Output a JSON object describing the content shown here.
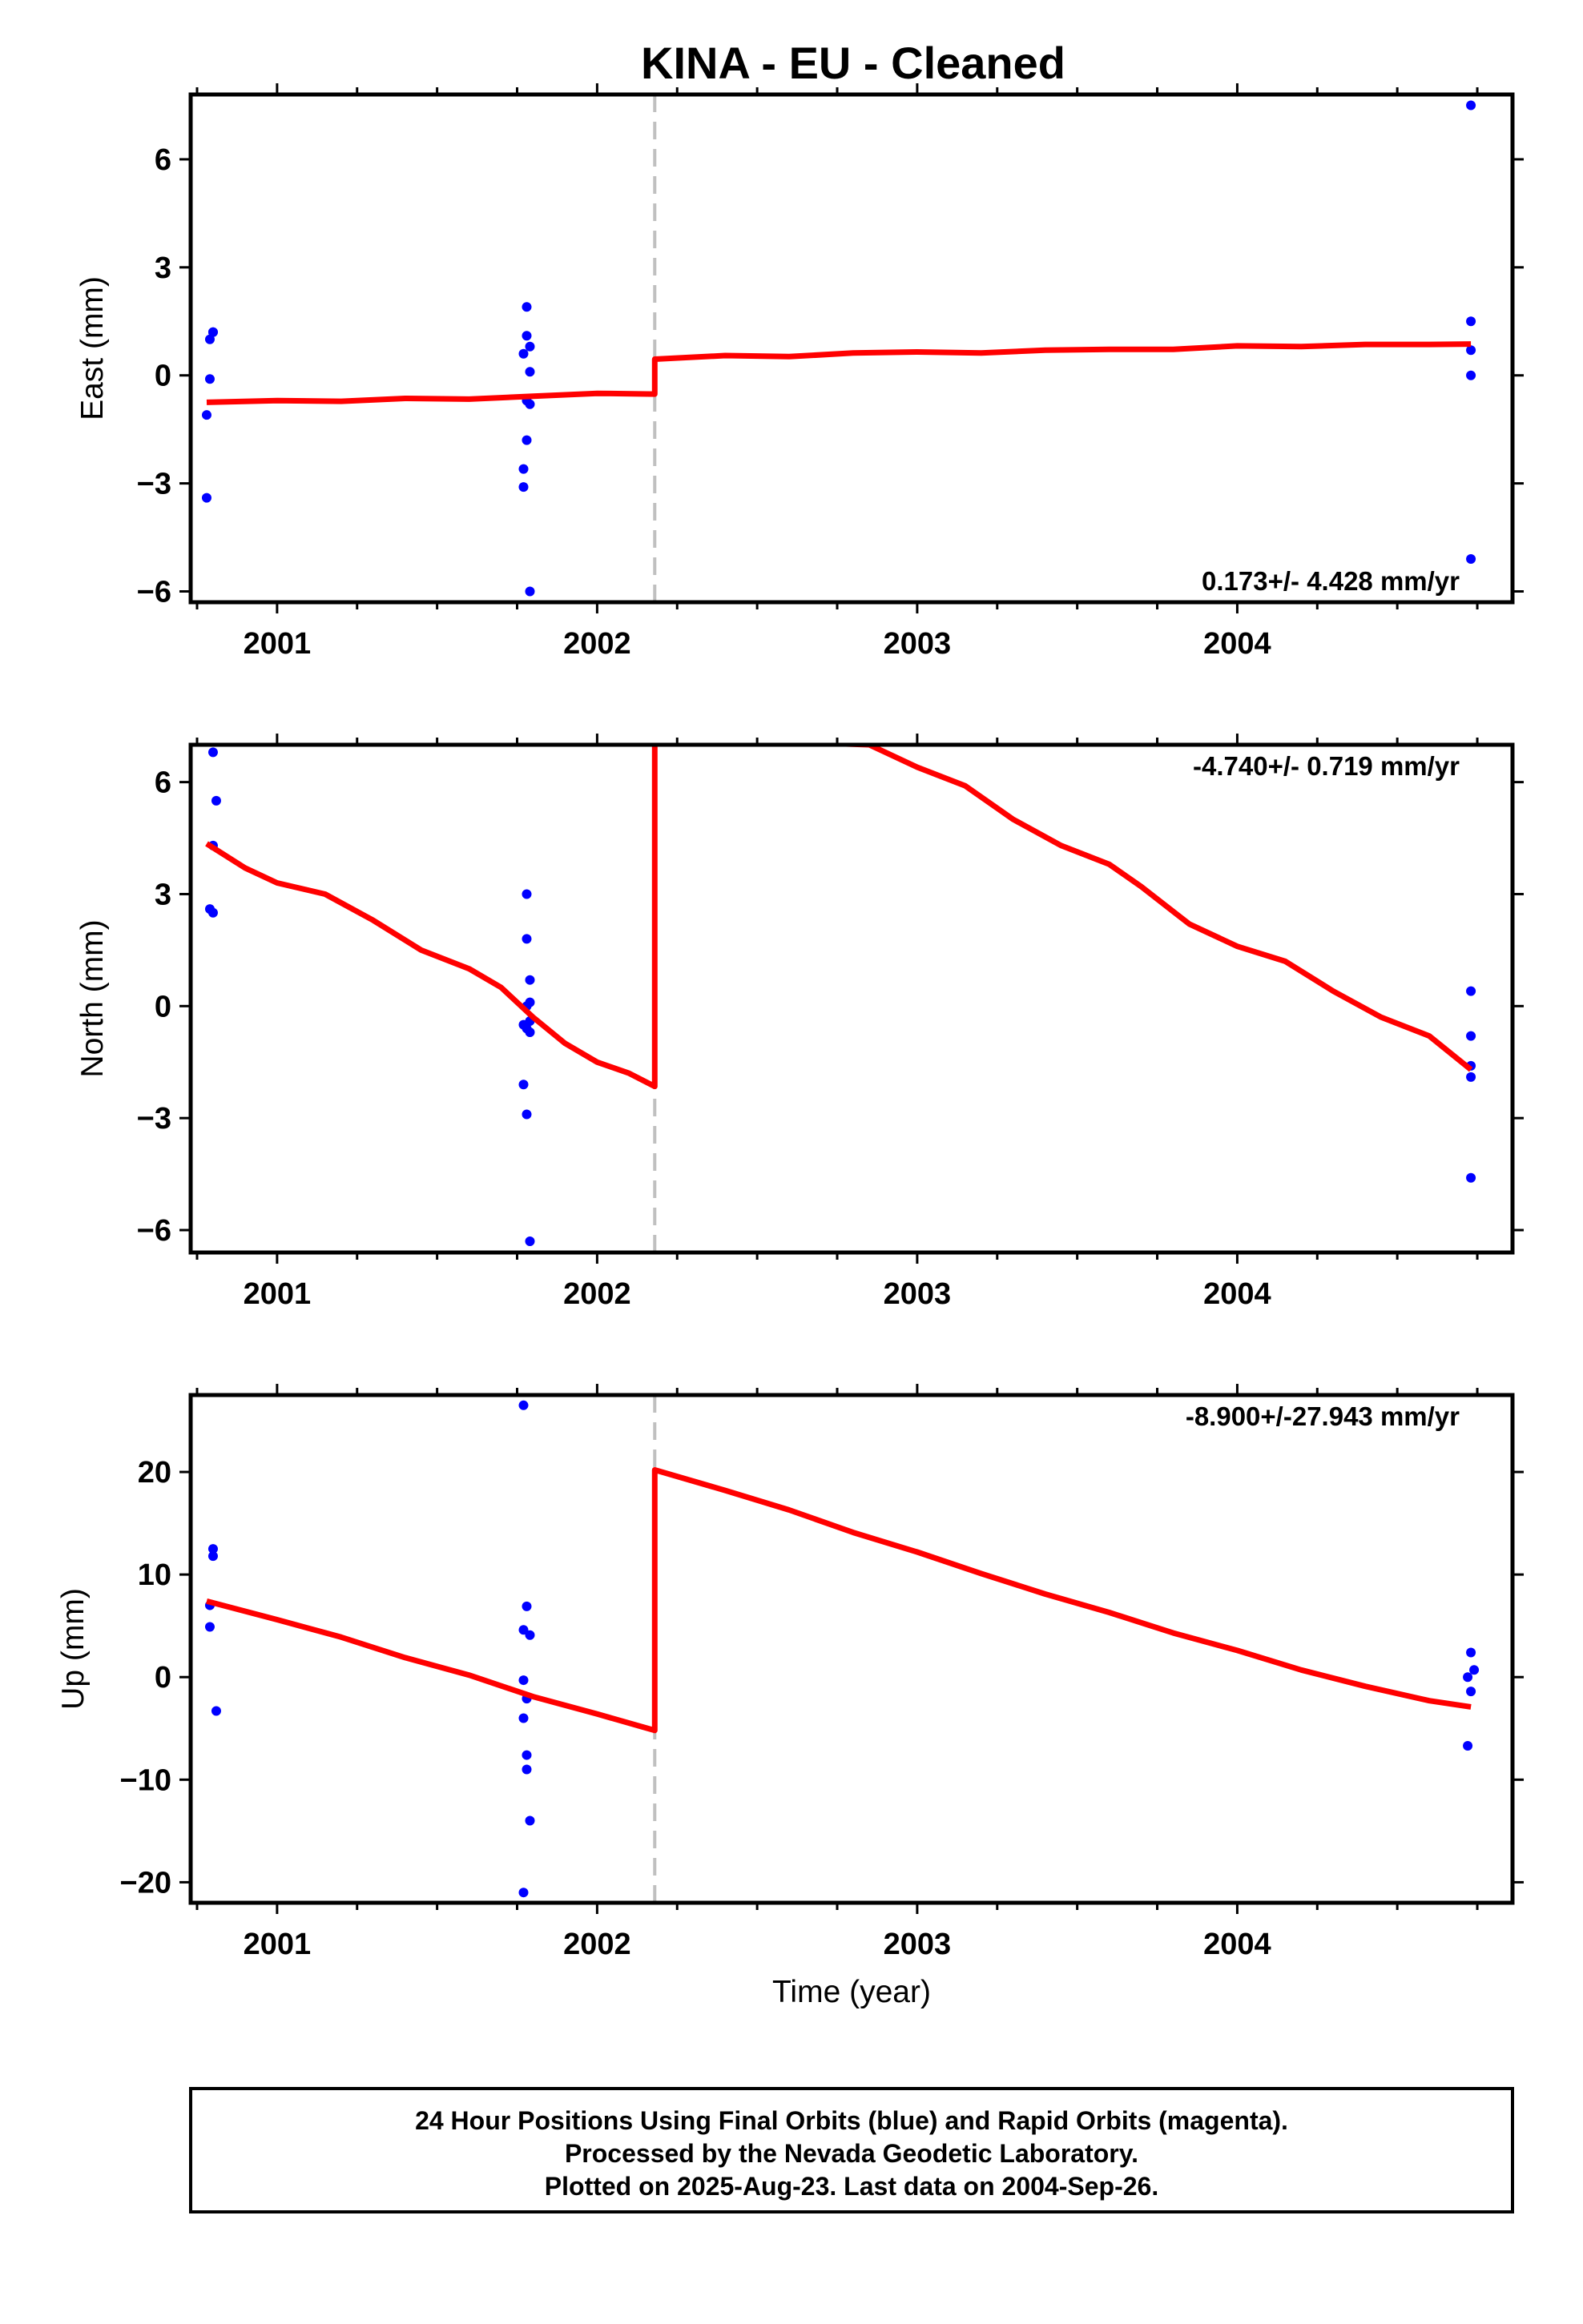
{
  "title": "KINA  - EU - Cleaned",
  "footer": {
    "line1": "24 Hour Positions Using Final Orbits (blue) and Rapid Orbits (magenta).",
    "line2": "Processed by the Nevada Geodetic Laboratory.",
    "line3": "Plotted on 2025-Aug-23. Last data on 2004-Sep-26."
  },
  "colors": {
    "points": "#0000ff",
    "model": "#ff0000",
    "break_line": "#c0c0c0",
    "frame": "#000000"
  },
  "chart_data": [
    {
      "type": "scatter",
      "ylabel": "East (mm)",
      "xlabel": "",
      "rate": "0.173+/- 4.428 mm/yr",
      "xlim": [
        2000.73,
        2004.86
      ],
      "ylim": [
        -6.3,
        7.8
      ],
      "xticks": [
        2001,
        2002,
        2003,
        2004
      ],
      "yticks": [
        -6,
        -3,
        0,
        3,
        6
      ],
      "yticklabels": [
        "−6",
        "−3",
        "0",
        "3",
        "6"
      ],
      "break_x": 2002.18,
      "points": [
        [
          2000.79,
          1.0
        ],
        [
          2000.8,
          1.2
        ],
        [
          2000.8,
          1.2
        ],
        [
          2000.79,
          -0.1
        ],
        [
          2000.78,
          -1.1
        ],
        [
          2000.78,
          -3.4
        ],
        [
          2001.78,
          1.9
        ],
        [
          2001.78,
          1.1
        ],
        [
          2001.79,
          0.8
        ],
        [
          2001.77,
          0.6
        ],
        [
          2001.79,
          0.1
        ],
        [
          2001.78,
          -0.7
        ],
        [
          2001.79,
          -0.8
        ],
        [
          2001.78,
          -1.8
        ],
        [
          2001.77,
          -2.6
        ],
        [
          2001.77,
          -3.1
        ],
        [
          2001.79,
          -6.0
        ],
        [
          2004.73,
          7.5
        ],
        [
          2004.73,
          1.5
        ],
        [
          2004.73,
          0.7
        ],
        [
          2004.73,
          0.0
        ],
        [
          2004.73,
          -5.1
        ]
      ],
      "model": [
        [
          2000.78,
          -0.75
        ],
        [
          2001.0,
          -0.7
        ],
        [
          2001.2,
          -0.72
        ],
        [
          2001.4,
          -0.64
        ],
        [
          2001.6,
          -0.66
        ],
        [
          2001.8,
          -0.58
        ],
        [
          2002.0,
          -0.5
        ],
        [
          2002.18,
          -0.52
        ],
        [
          2002.18,
          0.45
        ],
        [
          2002.4,
          0.55
        ],
        [
          2002.6,
          0.52
        ],
        [
          2002.8,
          0.62
        ],
        [
          2003.0,
          0.65
        ],
        [
          2003.2,
          0.62
        ],
        [
          2003.4,
          0.7
        ],
        [
          2003.6,
          0.72
        ],
        [
          2003.8,
          0.72
        ],
        [
          2004.0,
          0.82
        ],
        [
          2004.2,
          0.8
        ],
        [
          2004.4,
          0.86
        ],
        [
          2004.6,
          0.86
        ],
        [
          2004.73,
          0.87
        ]
      ]
    },
    {
      "type": "scatter",
      "ylabel": "North (mm)",
      "xlabel": "",
      "rate": "-4.740+/- 0.719 mm/yr",
      "xlim": [
        2000.73,
        2004.86
      ],
      "ylim": [
        -6.6,
        7.0
      ],
      "xticks": [
        2001,
        2002,
        2003,
        2004
      ],
      "yticks": [
        -6,
        -3,
        0,
        3,
        6
      ],
      "yticklabels": [
        "−6",
        "−3",
        "0",
        "3",
        "6"
      ],
      "break_x": 2002.18,
      "points": [
        [
          2000.8,
          6.8
        ],
        [
          2000.81,
          5.5
        ],
        [
          2000.8,
          4.3
        ],
        [
          2000.79,
          2.6
        ],
        [
          2000.8,
          2.5
        ],
        [
          2001.78,
          3.0
        ],
        [
          2001.78,
          1.8
        ],
        [
          2001.79,
          0.7
        ],
        [
          2001.79,
          0.1
        ],
        [
          2001.78,
          0.0
        ],
        [
          2001.79,
          -0.4
        ],
        [
          2001.77,
          -0.5
        ],
        [
          2001.78,
          -0.6
        ],
        [
          2001.79,
          -0.7
        ],
        [
          2001.77,
          -2.1
        ],
        [
          2001.78,
          -2.9
        ],
        [
          2001.79,
          -6.3
        ],
        [
          2004.73,
          0.4
        ],
        [
          2004.73,
          -0.8
        ],
        [
          2004.73,
          -1.6
        ],
        [
          2004.73,
          -1.9
        ],
        [
          2004.73,
          -4.6
        ]
      ],
      "model": [
        [
          2000.78,
          4.35
        ],
        [
          2000.9,
          3.7
        ],
        [
          2001.0,
          3.3
        ],
        [
          2001.15,
          3.0
        ],
        [
          2001.3,
          2.3
        ],
        [
          2001.45,
          1.5
        ],
        [
          2001.6,
          1.0
        ],
        [
          2001.7,
          0.5
        ],
        [
          2001.8,
          -0.3
        ],
        [
          2001.9,
          -1.0
        ],
        [
          2002.0,
          -1.5
        ],
        [
          2002.1,
          -1.8
        ],
        [
          2002.18,
          -2.15
        ],
        [
          2002.18,
          7.2
        ],
        [
          2002.85,
          7.0
        ],
        [
          2003.0,
          6.4
        ],
        [
          2003.15,
          5.9
        ],
        [
          2003.3,
          5.0
        ],
        [
          2003.45,
          4.3
        ],
        [
          2003.6,
          3.8
        ],
        [
          2003.7,
          3.2
        ],
        [
          2003.85,
          2.2
        ],
        [
          2004.0,
          1.6
        ],
        [
          2004.15,
          1.2
        ],
        [
          2004.3,
          0.4
        ],
        [
          2004.45,
          -0.3
        ],
        [
          2004.6,
          -0.8
        ],
        [
          2004.73,
          -1.7
        ]
      ]
    },
    {
      "type": "scatter",
      "ylabel": "Up (mm)",
      "xlabel": "Time (year)",
      "rate": "-8.900+/-27.943 mm/yr",
      "xlim": [
        2000.73,
        2004.86
      ],
      "ylim": [
        -22,
        27.5
      ],
      "xticks": [
        2001,
        2002,
        2003,
        2004
      ],
      "yticks": [
        -20,
        -10,
        0,
        10,
        20
      ],
      "yticklabels": [
        "−20",
        "−10",
        "0",
        "10",
        "20"
      ],
      "break_x": 2002.18,
      "points": [
        [
          2000.8,
          12.5
        ],
        [
          2000.8,
          11.8
        ],
        [
          2000.79,
          7.0
        ],
        [
          2000.79,
          4.9
        ],
        [
          2000.81,
          -3.3
        ],
        [
          2001.77,
          26.5
        ],
        [
          2001.78,
          6.9
        ],
        [
          2001.77,
          4.6
        ],
        [
          2001.79,
          4.1
        ],
        [
          2001.77,
          -0.3
        ],
        [
          2001.78,
          -2.1
        ],
        [
          2001.77,
          -4.0
        ],
        [
          2001.78,
          -7.6
        ],
        [
          2001.78,
          -9.0
        ],
        [
          2001.79,
          -14.0
        ],
        [
          2001.77,
          -21.0
        ],
        [
          2004.73,
          2.4
        ],
        [
          2004.74,
          0.7
        ],
        [
          2004.72,
          0.0
        ],
        [
          2004.73,
          -1.4
        ],
        [
          2004.72,
          -6.7
        ]
      ],
      "model": [
        [
          2000.78,
          7.4
        ],
        [
          2001.0,
          5.6
        ],
        [
          2001.2,
          3.9
        ],
        [
          2001.4,
          1.9
        ],
        [
          2001.6,
          0.2
        ],
        [
          2001.8,
          -1.9
        ],
        [
          2002.0,
          -3.6
        ],
        [
          2002.18,
          -5.2
        ],
        [
          2002.18,
          20.2
        ],
        [
          2002.4,
          18.2
        ],
        [
          2002.6,
          16.3
        ],
        [
          2002.8,
          14.1
        ],
        [
          2003.0,
          12.2
        ],
        [
          2003.2,
          10.1
        ],
        [
          2003.4,
          8.1
        ],
        [
          2003.6,
          6.3
        ],
        [
          2003.8,
          4.3
        ],
        [
          2004.0,
          2.6
        ],
        [
          2004.2,
          0.7
        ],
        [
          2004.4,
          -0.9
        ],
        [
          2004.6,
          -2.3
        ],
        [
          2004.73,
          -2.9
        ]
      ]
    }
  ]
}
